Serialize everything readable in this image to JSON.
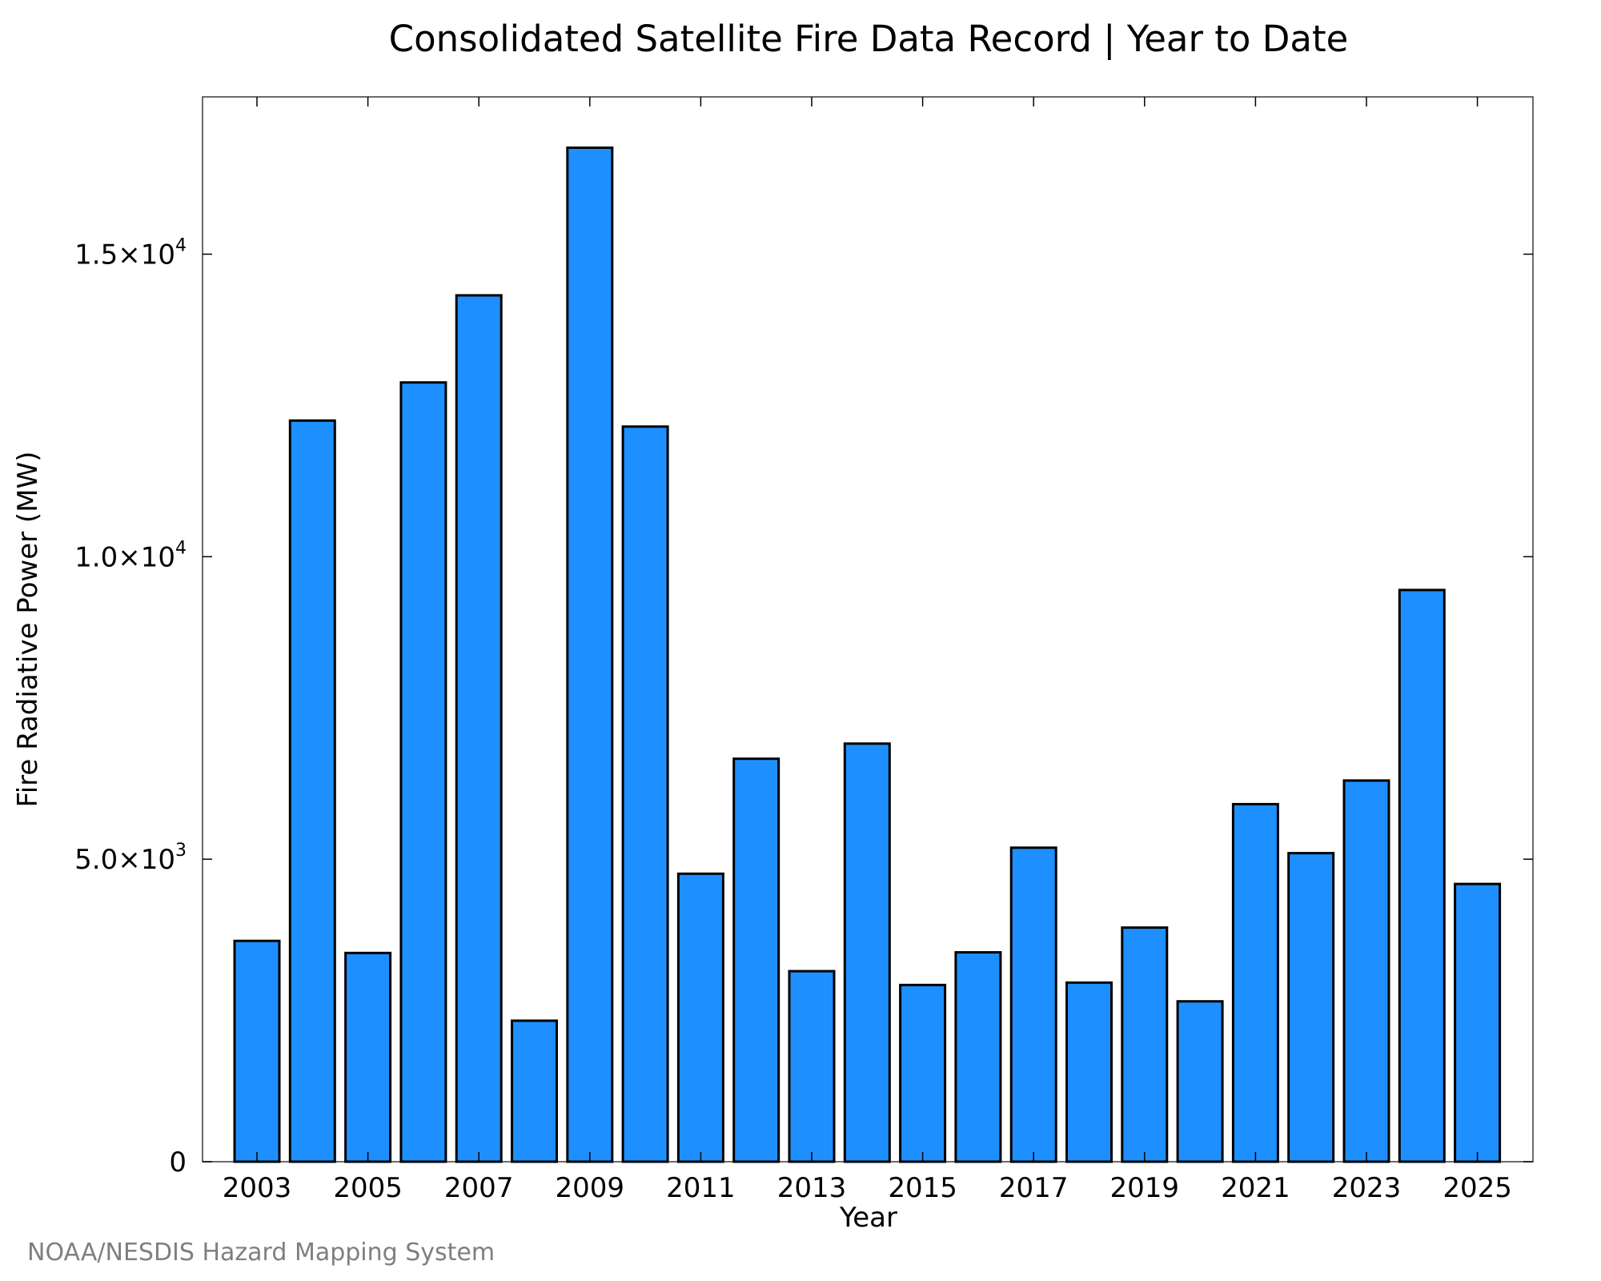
{
  "chart_data": {
    "type": "bar",
    "title": "Consolidated Satellite Fire Data Record | Year to Date",
    "xlabel": "Year",
    "ylabel": "Fire Radiative Power (MW)",
    "categories": [
      "2003",
      "2004",
      "2005",
      "2006",
      "2007",
      "2008",
      "2009",
      "2010",
      "2011",
      "2012",
      "2013",
      "2014",
      "2015",
      "2016",
      "2017",
      "2018",
      "2019",
      "2020",
      "2021",
      "2022",
      "2023",
      "2024",
      "2025"
    ],
    "values": [
      3650,
      12250,
      3450,
      12880,
      14320,
      2330,
      16760,
      12150,
      4760,
      6660,
      3150,
      6910,
      2920,
      3460,
      5190,
      2960,
      3870,
      2650,
      5910,
      5100,
      6300,
      9450,
      4590
    ],
    "ylim": [
      0,
      17600
    ],
    "x_ticks": [
      "2003",
      "2005",
      "2007",
      "2009",
      "2011",
      "2013",
      "2015",
      "2017",
      "2019",
      "2021",
      "2023",
      "2025"
    ],
    "y_ticks": [
      {
        "value": 0,
        "mantissa": "0",
        "exponent": ""
      },
      {
        "value": 5000,
        "mantissa": "5.0×10",
        "exponent": "3"
      },
      {
        "value": 10000,
        "mantissa": "1.0×10",
        "exponent": "4"
      },
      {
        "value": 15000,
        "mantissa": "1.5×10",
        "exponent": "4"
      }
    ],
    "bar_color": "#1e8fff",
    "grid": false,
    "legend": "none"
  },
  "credit": "NOAA/NESDIS Hazard Mapping System"
}
